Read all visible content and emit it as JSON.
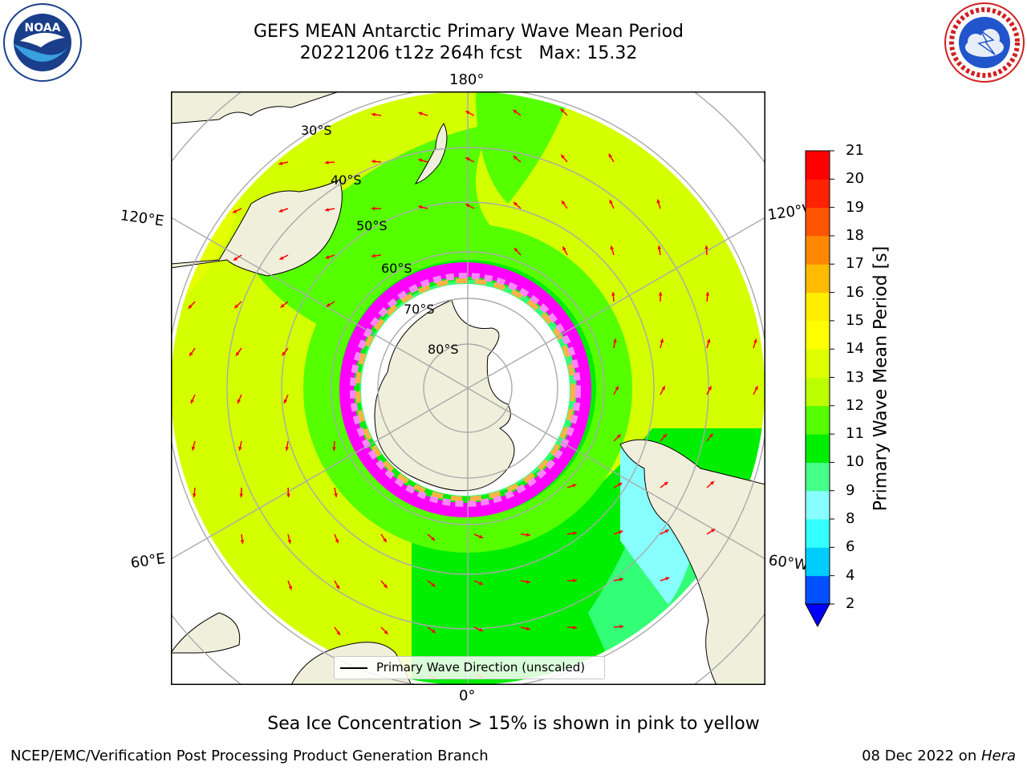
{
  "header": {
    "title_line1": "GEFS MEAN Antarctic Primary Wave Mean Period",
    "title_line2": "20221206 t12z 264h fcst   Max: 15.32"
  },
  "logos": {
    "left": {
      "name": "noaa-logo",
      "text": "NOAA",
      "ring_text": "NATIONAL OCEANIC AND ATMOSPHERIC ADMINISTRATION · U.S. DEPARTMENT OF COMMERCE"
    },
    "right": {
      "name": "nws-logo",
      "ring_text": "NATIONAL WEATHER SERVICE"
    }
  },
  "map": {
    "projection": "south polar stereographic",
    "longitude_labels": {
      "top": "180°",
      "bottom": "0°",
      "upper_left": "120°E",
      "upper_right": "120°W",
      "lower_left": "60°E",
      "lower_right": "60°W"
    },
    "latitude_labels": [
      "30°S",
      "40°S",
      "50°S",
      "60°S",
      "70°S",
      "80°S"
    ],
    "legend_label": "Primary Wave Direction (unscaled)",
    "arrow_color": "#ff0000",
    "land_color": "#efefdb",
    "ice_colors": [
      "#ff00ff",
      "#ff88ff",
      "#ffb347",
      "#ffff00"
    ],
    "wave_period_field": {
      "inner_ring_value_range": [
        10,
        11
      ],
      "outer_ring_value_range": [
        12,
        14
      ],
      "south_atlantic_value_range": [
        7,
        9
      ]
    }
  },
  "colorbar": {
    "label": "Primary Wave Mean Period [s]",
    "ticks": [
      "2",
      "4",
      "6",
      "8",
      "9",
      "10",
      "11",
      "12",
      "13",
      "14",
      "15",
      "16",
      "17",
      "18",
      "19",
      "20",
      "21"
    ],
    "colors": [
      "#0050ff",
      "#00ccff",
      "#33ffff",
      "#88ffff",
      "#44ff88",
      "#00ee00",
      "#55ff00",
      "#bbff00",
      "#ddff00",
      "#ffff00",
      "#ffee00",
      "#ffbb00",
      "#ff8800",
      "#ff5500",
      "#ff2200",
      "#ff0000"
    ],
    "extend_color": "#0000ff"
  },
  "subtitle": "Sea Ice Concentration > 15% is shown in pink to yellow",
  "footer": {
    "left": "NCEP/EMC/Verification Post Processing Product Generation Branch",
    "right_prefix": "08 Dec 2022 on ",
    "right_host": "Hera"
  }
}
